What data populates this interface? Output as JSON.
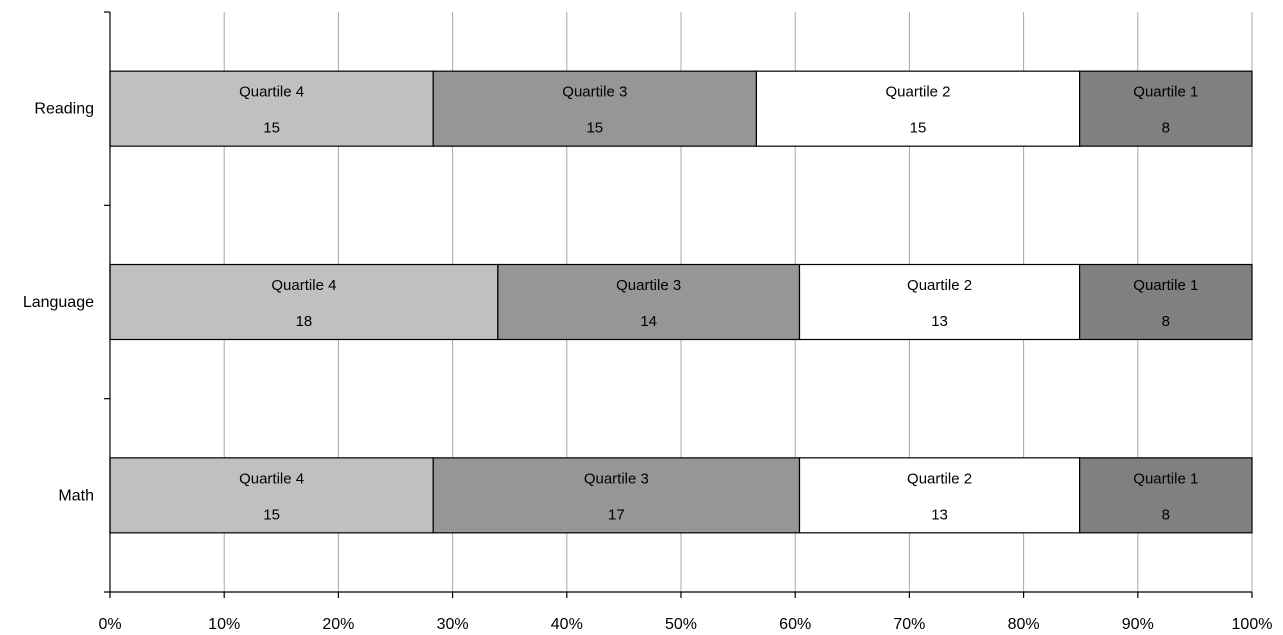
{
  "chart_data": {
    "type": "bar",
    "orientation": "horizontal",
    "stacked": "percent",
    "categories": [
      "Reading",
      "Language",
      "Math"
    ],
    "series": [
      {
        "name": "Quartile 4",
        "values": [
          15,
          18,
          15
        ],
        "color": "#c0c0c0"
      },
      {
        "name": "Quartile 3",
        "values": [
          15,
          14,
          17
        ],
        "color": "#969696"
      },
      {
        "name": "Quartile 2",
        "values": [
          15,
          13,
          13
        ],
        "color": "#ffffff"
      },
      {
        "name": "Quartile 1",
        "values": [
          8,
          8,
          8
        ],
        "color": "#808080"
      }
    ],
    "x_ticks": [
      "0%",
      "10%",
      "20%",
      "30%",
      "40%",
      "50%",
      "60%",
      "70%",
      "80%",
      "90%",
      "100%"
    ],
    "xlim": [
      0,
      100
    ],
    "grid": true,
    "legend": "none",
    "title": "",
    "xlabel": "",
    "ylabel": ""
  }
}
